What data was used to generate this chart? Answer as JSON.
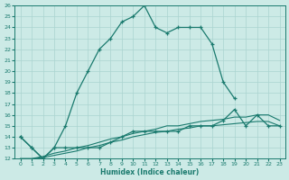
{
  "xlabel": "Humidex (Indice chaleur)",
  "x_all": [
    0,
    1,
    2,
    3,
    4,
    5,
    6,
    7,
    8,
    9,
    10,
    11,
    12,
    13,
    14,
    15,
    16,
    17,
    18,
    19,
    20,
    21,
    22,
    23
  ],
  "line1_x": [
    0,
    1,
    2,
    3,
    4,
    5,
    6,
    7,
    8,
    9,
    10,
    11,
    12,
    13,
    14,
    15,
    16,
    17,
    18,
    19
  ],
  "line1_y": [
    14,
    13,
    12,
    13,
    15,
    18,
    20,
    22,
    23,
    24.5,
    25,
    26,
    24,
    23.5,
    24,
    24,
    24,
    22.5,
    19,
    17.5
  ],
  "line2_x": [
    0,
    1,
    2,
    3,
    4,
    5,
    6,
    7,
    8,
    9,
    10,
    11,
    12,
    13,
    14,
    15,
    16,
    17,
    18,
    19,
    20,
    21,
    22,
    23
  ],
  "line2_y": [
    14,
    13,
    12,
    13,
    13,
    13,
    13,
    13,
    13.5,
    14,
    14.5,
    14.5,
    14.5,
    14.5,
    14.5,
    15,
    15,
    15,
    15.5,
    16.5,
    15,
    16,
    15,
    15
  ],
  "line3_y": [
    12,
    12,
    12.2,
    12.5,
    12.7,
    13,
    13.2,
    13.5,
    13.8,
    14,
    14.3,
    14.5,
    14.7,
    15,
    15,
    15.2,
    15.4,
    15.5,
    15.6,
    15.8,
    15.8,
    16,
    16,
    15.5
  ],
  "line4_y": [
    12,
    12,
    12.1,
    12.3,
    12.5,
    12.7,
    13,
    13.2,
    13.5,
    13.7,
    14,
    14.2,
    14.4,
    14.5,
    14.7,
    14.8,
    15,
    15,
    15.1,
    15.2,
    15.3,
    15.4,
    15.4,
    15
  ],
  "color": "#1a7a6e",
  "bg_color": "#cceae6",
  "grid_color": "#aad4d0",
  "ylim": [
    12,
    26
  ],
  "xlim": [
    -0.5,
    23.5
  ],
  "yticks": [
    12,
    13,
    14,
    15,
    16,
    17,
    18,
    19,
    20,
    21,
    22,
    23,
    24,
    25,
    26
  ],
  "xticks": [
    0,
    1,
    2,
    3,
    4,
    5,
    6,
    7,
    8,
    9,
    10,
    11,
    12,
    13,
    14,
    15,
    16,
    17,
    18,
    19,
    20,
    21,
    22,
    23
  ]
}
